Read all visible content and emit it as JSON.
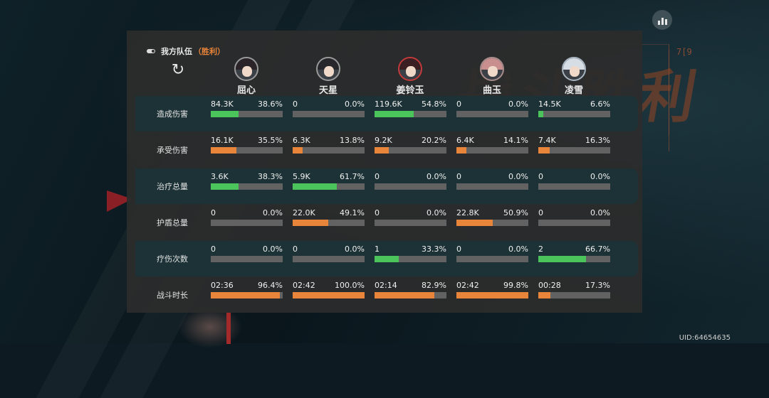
{
  "header": {
    "title": "我方队伍",
    "result": "（胜利）"
  },
  "icons": {
    "toggle": "toggle-icon",
    "refresh": "refresh-icon",
    "stats": "bar-chart-icon"
  },
  "heroes": [
    {
      "name": "屈心",
      "hair": "#2a2428",
      "ring": "#9a9a9a"
    },
    {
      "name": "天星",
      "hair": "#26262b",
      "ring": "#9a9a9a"
    },
    {
      "name": "姜铃玉",
      "hair": "#3a1e22",
      "ring": "#c23a3a"
    },
    {
      "name": "曲玉",
      "hair": "#c98f8f",
      "ring": "#a88c8c"
    },
    {
      "name": "凌雪",
      "hair": "#d7dde4",
      "ring": "#a8b4c0"
    }
  ],
  "colors": {
    "green": "#4cc45c",
    "orange": "#e8853a",
    "track": "#626262"
  },
  "rows": [
    {
      "label": "造成伤害",
      "color": "green",
      "alt": true,
      "cells": [
        {
          "value": "84.3K",
          "percent": "38.6%",
          "fill": 0.386
        },
        {
          "value": "0",
          "percent": "0.0%",
          "fill": 0.0
        },
        {
          "value": "119.6K",
          "percent": "54.8%",
          "fill": 0.548
        },
        {
          "value": "0",
          "percent": "0.0%",
          "fill": 0.0
        },
        {
          "value": "14.5K",
          "percent": "6.6%",
          "fill": 0.066
        }
      ]
    },
    {
      "label": "承受伤害",
      "color": "orange",
      "alt": false,
      "cells": [
        {
          "value": "16.1K",
          "percent": "35.5%",
          "fill": 0.355
        },
        {
          "value": "6.3K",
          "percent": "13.8%",
          "fill": 0.138
        },
        {
          "value": "9.2K",
          "percent": "20.2%",
          "fill": 0.202
        },
        {
          "value": "6.4K",
          "percent": "14.1%",
          "fill": 0.141
        },
        {
          "value": "7.4K",
          "percent": "16.3%",
          "fill": 0.163
        }
      ]
    },
    {
      "label": "治疗总量",
      "color": "green",
      "alt": true,
      "cells": [
        {
          "value": "3.6K",
          "percent": "38.3%",
          "fill": 0.383
        },
        {
          "value": "5.9K",
          "percent": "61.7%",
          "fill": 0.617
        },
        {
          "value": "0",
          "percent": "0.0%",
          "fill": 0.0
        },
        {
          "value": "0",
          "percent": "0.0%",
          "fill": 0.0
        },
        {
          "value": "0",
          "percent": "0.0%",
          "fill": 0.0
        }
      ]
    },
    {
      "label": "护盾总量",
      "color": "orange",
      "alt": false,
      "cells": [
        {
          "value": "0",
          "percent": "0.0%",
          "fill": 0.0
        },
        {
          "value": "22.0K",
          "percent": "49.1%",
          "fill": 0.491
        },
        {
          "value": "0",
          "percent": "0.0%",
          "fill": 0.0
        },
        {
          "value": "22.8K",
          "percent": "50.9%",
          "fill": 0.509
        },
        {
          "value": "0",
          "percent": "0.0%",
          "fill": 0.0
        }
      ]
    },
    {
      "label": "疗伤次数",
      "color": "green",
      "alt": true,
      "cells": [
        {
          "value": "0",
          "percent": "0.0%",
          "fill": 0.0
        },
        {
          "value": "0",
          "percent": "0.0%",
          "fill": 0.0
        },
        {
          "value": "1",
          "percent": "33.3%",
          "fill": 0.333
        },
        {
          "value": "0",
          "percent": "0.0%",
          "fill": 0.0
        },
        {
          "value": "2",
          "percent": "66.7%",
          "fill": 0.667
        }
      ]
    },
    {
      "label": "战斗时长",
      "color": "orange",
      "alt": false,
      "cells": [
        {
          "value": "02:36",
          "percent": "96.4%",
          "fill": 0.964
        },
        {
          "value": "02:42",
          "percent": "100.0%",
          "fill": 1.0
        },
        {
          "value": "02:14",
          "percent": "82.9%",
          "fill": 0.829
        },
        {
          "value": "02:42",
          "percent": "99.8%",
          "fill": 0.998
        },
        {
          "value": "00:28",
          "percent": "17.3%",
          "fill": 0.173
        }
      ]
    }
  ],
  "background": {
    "victory_text": "战斗胜利",
    "mark": "7[9"
  },
  "uid": "UID:64654635"
}
